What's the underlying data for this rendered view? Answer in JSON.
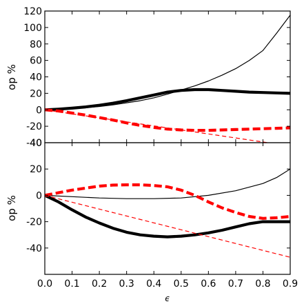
{
  "chart_data": [
    {
      "type": "line",
      "xlabel": "",
      "ylabel": "op %",
      "xlim": [
        0.0,
        0.9
      ],
      "ylim": [
        -40,
        120
      ],
      "yticks": [
        -40,
        -20,
        0,
        20,
        40,
        60,
        80,
        100,
        120
      ],
      "grid": false,
      "series": [
        {
          "color": "#000000",
          "style": "solid",
          "weight": "thin",
          "points": [
            [
              0.0,
              0
            ],
            [
              0.05,
              0.5
            ],
            [
              0.1,
              1.5
            ],
            [
              0.15,
              2.5
            ],
            [
              0.2,
              4
            ],
            [
              0.25,
              6
            ],
            [
              0.3,
              8.5
            ],
            [
              0.35,
              11
            ],
            [
              0.4,
              14.5
            ],
            [
              0.45,
              19
            ],
            [
              0.5,
              24
            ],
            [
              0.55,
              29
            ],
            [
              0.6,
              35
            ],
            [
              0.65,
              42
            ],
            [
              0.7,
              50
            ],
            [
              0.75,
              60
            ],
            [
              0.8,
              72
            ],
            [
              0.85,
              93
            ],
            [
              0.9,
              115
            ]
          ]
        },
        {
          "color": "#000000",
          "style": "solid",
          "weight": "thick",
          "points": [
            [
              0.0,
              0
            ],
            [
              0.05,
              0.8
            ],
            [
              0.1,
              2
            ],
            [
              0.15,
              3.5
            ],
            [
              0.2,
              5.5
            ],
            [
              0.25,
              8
            ],
            [
              0.3,
              11
            ],
            [
              0.35,
              14.5
            ],
            [
              0.4,
              18
            ],
            [
              0.45,
              21.5
            ],
            [
              0.5,
              23.5
            ],
            [
              0.55,
              24.5
            ],
            [
              0.6,
              24.5
            ],
            [
              0.65,
              23.5
            ],
            [
              0.7,
              22.5
            ],
            [
              0.75,
              21.5
            ],
            [
              0.8,
              21
            ],
            [
              0.85,
              20.5
            ],
            [
              0.9,
              20
            ]
          ]
        },
        {
          "color": "#ff0000",
          "style": "dashed",
          "weight": "thin",
          "points": [
            [
              0.0,
              0
            ],
            [
              0.9,
              -44
            ]
          ]
        },
        {
          "color": "#ff0000",
          "style": "dashed",
          "weight": "thick",
          "points": [
            [
              0.0,
              0
            ],
            [
              0.05,
              -1.5
            ],
            [
              0.1,
              -4
            ],
            [
              0.15,
              -6.5
            ],
            [
              0.2,
              -9.5
            ],
            [
              0.25,
              -12.5
            ],
            [
              0.3,
              -16
            ],
            [
              0.35,
              -19
            ],
            [
              0.4,
              -21.5
            ],
            [
              0.45,
              -23.5
            ],
            [
              0.5,
              -24.5
            ],
            [
              0.55,
              -25
            ],
            [
              0.6,
              -25
            ],
            [
              0.65,
              -24.5
            ],
            [
              0.7,
              -24
            ],
            [
              0.75,
              -23.5
            ],
            [
              0.8,
              -23
            ],
            [
              0.85,
              -22.5
            ],
            [
              0.9,
              -22
            ]
          ]
        }
      ]
    },
    {
      "type": "line",
      "xlabel": "ϵ",
      "ylabel": "op %",
      "xlim": [
        0.0,
        0.9
      ],
      "ylim": [
        -60,
        40
      ],
      "yticks": [
        -40,
        -20,
        0,
        20,
        40
      ],
      "xticks": [
        0.0,
        0.1,
        0.2,
        0.3,
        0.4,
        0.5,
        0.6,
        0.7,
        0.8,
        0.9
      ],
      "xtick_labels": [
        "0.0",
        "0.1",
        "0.2",
        "0.3",
        "0.4",
        "0.5",
        "0.6",
        "0.7",
        "0.8",
        "0.9"
      ],
      "grid": false,
      "series": [
        {
          "color": "#000000",
          "style": "solid",
          "weight": "thin",
          "points": [
            [
              0.0,
              0
            ],
            [
              0.1,
              -1
            ],
            [
              0.2,
              -2
            ],
            [
              0.3,
              -2.5
            ],
            [
              0.4,
              -2.5
            ],
            [
              0.5,
              -2
            ],
            [
              0.6,
              0
            ],
            [
              0.7,
              3.5
            ],
            [
              0.8,
              9
            ],
            [
              0.85,
              13.5
            ],
            [
              0.9,
              20
            ]
          ]
        },
        {
          "color": "#000000",
          "style": "solid",
          "weight": "thick",
          "points": [
            [
              0.0,
              0
            ],
            [
              0.05,
              -5
            ],
            [
              0.1,
              -11
            ],
            [
              0.15,
              -16.5
            ],
            [
              0.2,
              -21
            ],
            [
              0.25,
              -25
            ],
            [
              0.3,
              -28
            ],
            [
              0.35,
              -30
            ],
            [
              0.4,
              -31
            ],
            [
              0.45,
              -31.5
            ],
            [
              0.5,
              -31
            ],
            [
              0.55,
              -30
            ],
            [
              0.6,
              -28.5
            ],
            [
              0.65,
              -26.5
            ],
            [
              0.7,
              -24
            ],
            [
              0.75,
              -21.5
            ],
            [
              0.8,
              -20
            ],
            [
              0.85,
              -20
            ],
            [
              0.9,
              -20
            ]
          ]
        },
        {
          "color": "#ff0000",
          "style": "dashed",
          "weight": "thin",
          "points": [
            [
              0.0,
              0
            ],
            [
              0.9,
              -47
            ]
          ]
        },
        {
          "color": "#ff0000",
          "style": "dashed",
          "weight": "thick",
          "points": [
            [
              0.0,
              0
            ],
            [
              0.05,
              2
            ],
            [
              0.1,
              4
            ],
            [
              0.15,
              5.5
            ],
            [
              0.2,
              7
            ],
            [
              0.25,
              7.8
            ],
            [
              0.3,
              8
            ],
            [
              0.35,
              8
            ],
            [
              0.4,
              7.5
            ],
            [
              0.45,
              6.5
            ],
            [
              0.5,
              4
            ],
            [
              0.55,
              0
            ],
            [
              0.6,
              -5
            ],
            [
              0.65,
              -9.5
            ],
            [
              0.7,
              -13
            ],
            [
              0.75,
              -16
            ],
            [
              0.8,
              -17.5
            ],
            [
              0.85,
              -17
            ],
            [
              0.9,
              -16
            ]
          ]
        }
      ]
    }
  ]
}
